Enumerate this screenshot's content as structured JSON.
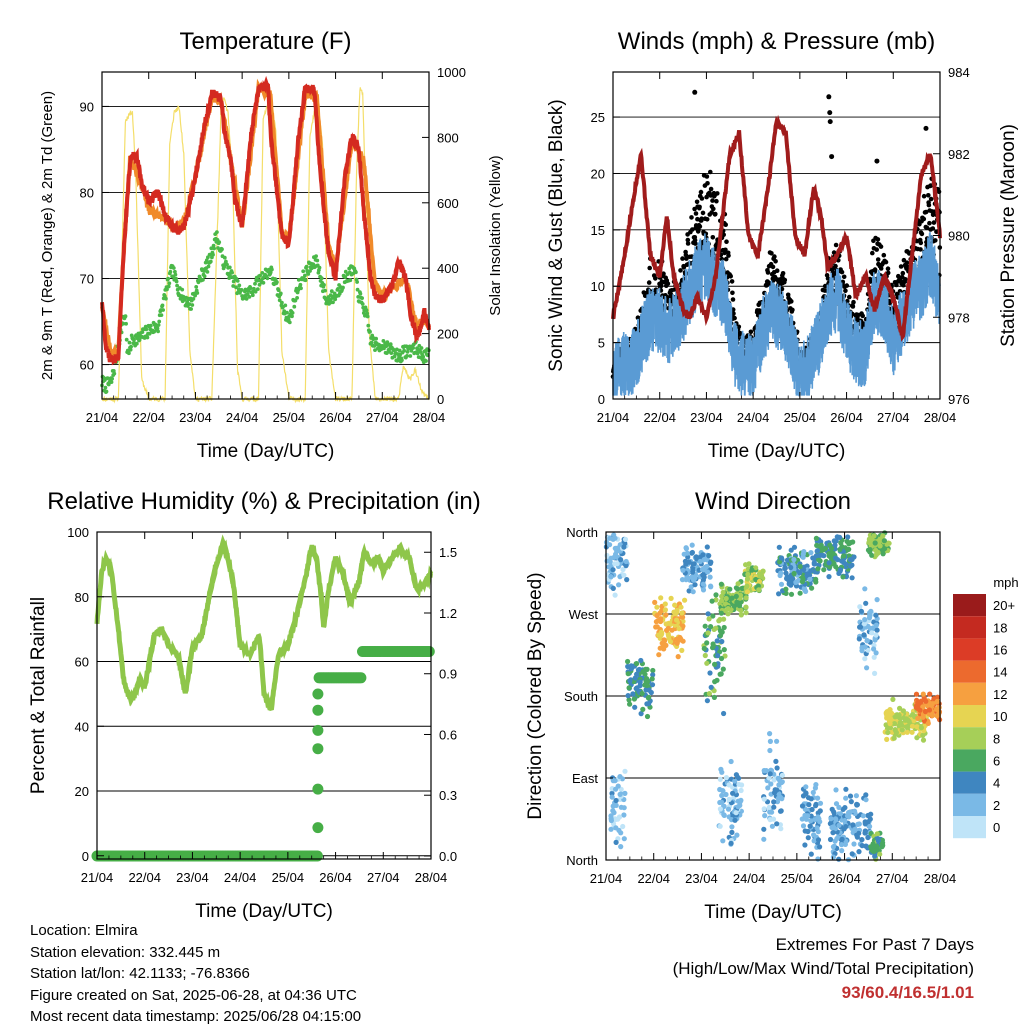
{
  "colors": {
    "t2m": "#d42a20",
    "t9m": "#f08a2a",
    "td": "#4ab848",
    "solar": "#f4de6a",
    "gust": "#000000",
    "wind": "#5a9bd4",
    "pressure": "#a01c1c",
    "rh": "#8ec64a",
    "precip": "#46ae46",
    "extremes": "#c03030"
  },
  "info": {
    "location": "Location: Elmira",
    "elevation": "Station elevation: 332.445 m",
    "latlon": "Station lat/lon: 42.1133; -76.8366",
    "created": "Figure created on Sat, 2025-06-28, at 04:36 UTC",
    "recent": "Most recent data timestamp: 2025/06/28 04:15:00"
  },
  "extremes": {
    "title": "Extremes For Past 7 Days",
    "subtitle": "(High/Low/Max Wind/Total Precipitation)",
    "values": "93/60.4/16.5/1.01"
  },
  "chart_data": [
    {
      "type": "line",
      "title": "Temperature (F)",
      "xlabel": "Time (Day/UTC)",
      "ylabel": "2m & 9m T (Red, Orange) & 2m Td (Green)",
      "y2label": "Solar Insolation (Yellow)",
      "x_ticks": [
        "21/04",
        "22/04",
        "23/04",
        "24/04",
        "25/04",
        "26/04",
        "27/04",
        "28/04"
      ],
      "xlim": [
        0,
        7
      ],
      "ylim": [
        56,
        94
      ],
      "y_ticks": [
        60,
        70,
        80,
        90
      ],
      "y2lim": [
        0,
        1000
      ],
      "y2_ticks": [
        0,
        200,
        400,
        600,
        800,
        1000
      ],
      "grid": true,
      "series": [
        {
          "name": "2m T",
          "key": "t2m",
          "x": [
            0,
            0.08,
            0.18,
            0.35,
            0.45,
            0.55,
            0.62,
            0.75,
            0.85,
            1.0,
            1.2,
            1.35,
            1.5,
            1.62,
            1.75,
            1.85,
            2.0,
            2.2,
            2.35,
            2.55,
            2.62,
            2.75,
            2.85,
            3.0,
            3.2,
            3.35,
            3.55,
            3.62,
            3.75,
            3.85,
            4.0,
            4.2,
            4.35,
            4.55,
            4.62,
            4.75,
            4.85,
            5.0,
            5.2,
            5.35,
            5.5,
            5.6,
            5.75,
            5.85,
            6.0,
            6.2,
            6.35,
            6.5,
            6.6,
            6.75,
            6.9,
            7.0
          ],
          "values": [
            67.5,
            62,
            60.5,
            61,
            72,
            80,
            84.5,
            84,
            81,
            79,
            80,
            77.5,
            76,
            75.5,
            76,
            78,
            82,
            88,
            91.5,
            91,
            87,
            84,
            79,
            76,
            87,
            92,
            92.5,
            86,
            80,
            75,
            74,
            86,
            92,
            92,
            86,
            78,
            73,
            70,
            82,
            86.5,
            85,
            78,
            70,
            68,
            67.5,
            69,
            72,
            70,
            66,
            63,
            66,
            64
          ]
        },
        {
          "name": "9m T",
          "key": "t9m",
          "x": [
            0,
            0.18,
            0.35,
            0.45,
            0.6,
            0.85,
            1.0,
            1.35,
            1.5,
            1.75,
            2.0,
            2.35,
            2.55,
            2.75,
            3.0,
            3.35,
            3.6,
            3.85,
            4.0,
            4.35,
            4.6,
            4.85,
            5.0,
            5.35,
            5.6,
            5.85,
            6.0,
            6.5,
            6.75,
            6.9,
            7.0
          ],
          "values": [
            67,
            61.5,
            61.5,
            72,
            84,
            81,
            78,
            77,
            76,
            76.5,
            82,
            91,
            90.5,
            84,
            76,
            92,
            91.5,
            75.5,
            74.5,
            91.5,
            91,
            74,
            71,
            86,
            84,
            69,
            68,
            70,
            64,
            65.5,
            64.5
          ]
        },
        {
          "name": "2m Td",
          "key": "td",
          "x": [
            0,
            0.08,
            0.2,
            0.3,
            0.4,
            0.5,
            0.55,
            0.65,
            0.8,
            1.0,
            1.2,
            1.35,
            1.5,
            1.7,
            1.9,
            2.1,
            2.3,
            2.45,
            2.6,
            2.8,
            3.0,
            3.2,
            3.4,
            3.6,
            3.8,
            4.0,
            4.2,
            4.4,
            4.6,
            4.8,
            5.0,
            5.2,
            5.4,
            5.5,
            5.65,
            5.75,
            5.9,
            6.0,
            6.2,
            6.35,
            6.5,
            6.7,
            6.9,
            7.0
          ],
          "values": [
            58,
            57.5,
            58,
            60.5,
            64,
            66,
            61,
            63,
            63,
            64,
            64.5,
            68,
            71,
            68,
            67,
            70,
            72,
            75,
            72,
            70,
            68,
            68.5,
            70,
            71,
            68,
            65,
            69,
            71,
            72,
            67.5,
            68,
            70,
            71,
            68,
            66,
            63,
            62,
            62.5,
            61.5,
            61,
            61.5,
            62,
            61,
            61
          ]
        },
        {
          "name": "Solar Insolation",
          "key": "solar",
          "axis": "y2",
          "x": [
            0,
            0.35,
            0.5,
            0.58,
            0.65,
            0.72,
            0.85,
            1.0,
            1.35,
            1.45,
            1.55,
            1.65,
            1.75,
            1.88,
            2.0,
            2.35,
            2.5,
            2.55,
            2.62,
            2.7,
            2.8,
            2.9,
            3.0,
            3.35,
            3.45,
            3.55,
            3.62,
            3.72,
            3.85,
            4.0,
            4.35,
            4.45,
            4.55,
            4.62,
            4.72,
            4.85,
            5.0,
            5.35,
            5.45,
            5.52,
            5.58,
            5.65,
            5.72,
            5.85,
            6.0,
            6.35,
            6.45,
            6.52,
            6.6,
            6.7,
            6.85,
            7.0
          ],
          "values": [
            0,
            0,
            850,
            870,
            880,
            700,
            60,
            0,
            0,
            780,
            880,
            890,
            750,
            150,
            0,
            0,
            650,
            900,
            920,
            870,
            650,
            90,
            0,
            0,
            860,
            900,
            920,
            820,
            150,
            0,
            0,
            800,
            880,
            910,
            780,
            150,
            0,
            0,
            700,
            950,
            930,
            600,
            200,
            0,
            0,
            0,
            100,
            80,
            60,
            90,
            20,
            0
          ]
        }
      ]
    },
    {
      "type": "scatter",
      "title": "Winds (mph) & Pressure (mb)",
      "xlabel": "Time (Day/UTC)",
      "ylabel": "Sonic Wind & Gust (Blue, Black)",
      "y2label": "Station Pressure (Maroon)",
      "x_ticks": [
        "21/04",
        "22/04",
        "23/04",
        "24/04",
        "25/04",
        "26/04",
        "27/04",
        "28/04"
      ],
      "xlim": [
        0,
        7
      ],
      "ylim": [
        0,
        29
      ],
      "y_ticks": [
        0,
        5,
        10,
        15,
        20,
        25
      ],
      "y2lim": [
        976,
        984
      ],
      "y2_ticks": [
        976,
        978,
        980,
        982,
        984
      ],
      "grid": true,
      "gust_envelope": {
        "x": [
          0,
          0.2,
          0.4,
          0.6,
          0.8,
          1.0,
          1.2,
          1.4,
          1.6,
          1.8,
          2.0,
          2.2,
          2.4,
          2.6,
          2.8,
          3.0,
          3.2,
          3.4,
          3.6,
          3.8,
          4.0,
          4.2,
          4.4,
          4.6,
          4.8,
          5.0,
          5.2,
          5.4,
          5.6,
          5.8,
          6.0,
          6.2,
          6.4,
          6.6,
          6.8,
          7.0
        ],
        "values": [
          3,
          4.5,
          5,
          8,
          12,
          13,
          10,
          11,
          15,
          18,
          20,
          19,
          17,
          8,
          5,
          6,
          10,
          13,
          12,
          9,
          4,
          5,
          7,
          12,
          14,
          10,
          8,
          7,
          15,
          13,
          10,
          12,
          14,
          17,
          20,
          18
        ]
      },
      "gust_extremes": [
        {
          "x": 1.75,
          "y": 27.2
        },
        {
          "x": 4.62,
          "y": 26.8
        },
        {
          "x": 4.64,
          "y": 25.4
        },
        {
          "x": 4.65,
          "y": 24.6
        },
        {
          "x": 4.68,
          "y": 21.5
        },
        {
          "x": 5.65,
          "y": 21.1
        },
        {
          "x": 6.7,
          "y": 24.0
        }
      ],
      "series": [
        {
          "name": "Sonic Wind",
          "key": "wind",
          "x": [
            0,
            0.2,
            0.4,
            0.6,
            0.8,
            1.0,
            1.2,
            1.4,
            1.6,
            1.8,
            2.0,
            2.2,
            2.4,
            2.6,
            2.8,
            3.0,
            3.2,
            3.4,
            3.6,
            3.8,
            4.0,
            4.2,
            4.4,
            4.6,
            4.8,
            5.0,
            5.2,
            5.4,
            5.6,
            5.8,
            6.0,
            6.2,
            6.4,
            6.6,
            6.8,
            7.0
          ],
          "values": [
            2,
            3,
            3,
            5,
            7,
            7,
            6,
            7,
            9,
            11,
            12,
            10,
            9,
            4,
            3,
            3,
            6,
            8,
            7,
            5,
            2,
            3,
            5,
            8,
            9,
            6,
            4,
            4,
            9,
            8,
            5,
            7,
            9,
            10,
            12,
            9
          ]
        },
        {
          "name": "Station Pressure",
          "key": "pressure",
          "axis": "y2",
          "x": [
            0,
            0.25,
            0.45,
            0.6,
            0.8,
            1.0,
            1.15,
            1.3,
            1.5,
            1.65,
            1.8,
            2.0,
            2.2,
            2.5,
            2.7,
            2.9,
            3.1,
            3.3,
            3.5,
            3.7,
            3.9,
            4.1,
            4.3,
            4.45,
            4.6,
            4.8,
            5.0,
            5.2,
            5.4,
            5.6,
            5.8,
            6.0,
            6.2,
            6.4,
            6.6,
            6.8,
            6.95,
            7.0
          ],
          "values": [
            978,
            979.5,
            981,
            982,
            979.5,
            979,
            980.5,
            979,
            978.2,
            978,
            978.5,
            978,
            979,
            982,
            982.5,
            980,
            979.5,
            981,
            982.8,
            982.5,
            980,
            979.5,
            981.2,
            980.5,
            979.2,
            979.5,
            980,
            978.5,
            979,
            978.2,
            979,
            978.5,
            977.5,
            979.5,
            981.5,
            982,
            980.5,
            980
          ]
        }
      ]
    },
    {
      "type": "line",
      "title": "Relative Humidity (%) & Precipitation (in)",
      "xlabel": "Time (Day/UTC)",
      "ylabel": "Percent & Total Rainfall",
      "x_ticks": [
        "21/04",
        "22/04",
        "23/04",
        "24/04",
        "25/04",
        "26/04",
        "27/04",
        "28/04"
      ],
      "xlim": [
        0,
        7
      ],
      "ylim": [
        -1,
        100
      ],
      "y_ticks": [
        0,
        20,
        40,
        60,
        80,
        100
      ],
      "y2lim": [
        -0.015,
        1.6
      ],
      "y2_ticks": [
        "0.0",
        "0.3",
        "0.6",
        "0.9",
        "1.2",
        "1.5"
      ],
      "grid": true,
      "series": [
        {
          "name": "Relative Humidity",
          "key": "rh",
          "x": [
            0,
            0.1,
            0.2,
            0.3,
            0.45,
            0.55,
            0.65,
            0.75,
            0.9,
            1.0,
            1.2,
            1.35,
            1.5,
            1.7,
            1.85,
            2.0,
            2.2,
            2.35,
            2.5,
            2.65,
            2.85,
            3.0,
            3.2,
            3.4,
            3.5,
            3.65,
            3.8,
            4.0,
            4.2,
            4.4,
            4.5,
            4.6,
            4.7,
            4.75,
            4.85,
            5.0,
            5.15,
            5.3,
            5.5,
            5.6,
            5.75,
            5.9,
            6.0,
            6.2,
            6.35,
            6.55,
            6.7,
            6.9,
            7.0
          ],
          "values": [
            72,
            88,
            92,
            88,
            70,
            55,
            50,
            48,
            55,
            52,
            68,
            70,
            65,
            62,
            50,
            64,
            68,
            80,
            90,
            97,
            85,
            65,
            62,
            68,
            50,
            45,
            62,
            65,
            75,
            88,
            96,
            92,
            80,
            70,
            82,
            92,
            88,
            78,
            85,
            94,
            90,
            92,
            88,
            92,
            95,
            92,
            82,
            85,
            87
          ]
        },
        {
          "name": "Total Rainfall",
          "key": "precip",
          "axis": "y2",
          "x": [
            0,
            4.63,
            4.63,
            4.63,
            4.66,
            4.68,
            5.0,
            5.25,
            5.5,
            5.55,
            6.0,
            6.5,
            7.0
          ],
          "values": [
            0,
            0,
            0.14,
            0.53,
            0.88,
            0.88,
            0.88,
            0.88,
            0.88,
            1.01,
            1.01,
            1.01,
            1.01
          ]
        }
      ]
    },
    {
      "type": "scatter",
      "title": "Wind Direction",
      "xlabel": "Time (Day/UTC)",
      "ylabel": "Direction (Colored By Speed)",
      "x_ticks": [
        "21/04",
        "22/04",
        "23/04",
        "24/04",
        "25/04",
        "26/04",
        "27/04",
        "28/04"
      ],
      "xlim": [
        0,
        7
      ],
      "ylim": [
        0,
        360
      ],
      "y_ticks": [
        "North",
        "East",
        "South",
        "West",
        "North"
      ],
      "grid": true,
      "colorbar": {
        "title": "mph",
        "labels": [
          "20+",
          "18",
          "16",
          "14",
          "12",
          "10",
          "8",
          "6",
          "4",
          "2",
          "0"
        ],
        "colors": [
          "#9a1b1b",
          "#c42a20",
          "#dc3c26",
          "#ec6a2e",
          "#f6a040",
          "#e6d452",
          "#a6cf58",
          "#4aa860",
          "#3f86c0",
          "#7ab9e6",
          "#bfe4f8"
        ]
      },
      "clusters": [
        {
          "x0": 0.0,
          "x1": 0.45,
          "y": 330,
          "spread": 35,
          "speed": 2
        },
        {
          "x0": 0.1,
          "x1": 0.4,
          "y": 50,
          "spread": 50,
          "speed": 2
        },
        {
          "x0": 0.45,
          "x1": 1.0,
          "y": 195,
          "spread": 35,
          "speed": 5
        },
        {
          "x0": 1.0,
          "x1": 1.65,
          "y": 255,
          "spread": 30,
          "speed": 11
        },
        {
          "x0": 1.6,
          "x1": 2.2,
          "y": 320,
          "spread": 25,
          "speed": 3
        },
        {
          "x0": 2.05,
          "x1": 2.5,
          "y": 235,
          "spread": 65,
          "speed": 6
        },
        {
          "x0": 2.4,
          "x1": 2.95,
          "y": 285,
          "spread": 20,
          "speed": 7
        },
        {
          "x0": 2.9,
          "x1": 3.3,
          "y": 310,
          "spread": 20,
          "speed": 8
        },
        {
          "x0": 3.3,
          "x1": 3.7,
          "y": 75,
          "spread": 55,
          "speed": 2
        },
        {
          "x0": 2.35,
          "x1": 2.85,
          "y": 60,
          "spread": 55,
          "speed": 2
        },
        {
          "x0": 3.6,
          "x1": 4.4,
          "y": 315,
          "spread": 30,
          "speed": 4
        },
        {
          "x0": 4.1,
          "x1": 4.5,
          "y": 45,
          "spread": 45,
          "speed": 3
        },
        {
          "x0": 4.4,
          "x1": 5.2,
          "y": 335,
          "spread": 25,
          "speed": 5
        },
        {
          "x0": 4.7,
          "x1": 5.55,
          "y": 35,
          "spread": 40,
          "speed": 3
        },
        {
          "x0": 5.3,
          "x1": 5.7,
          "y": 250,
          "spread": 45,
          "speed": 2
        },
        {
          "x0": 5.5,
          "x1": 5.95,
          "y": 345,
          "spread": 15,
          "speed": 7
        },
        {
          "x0": 5.55,
          "x1": 5.8,
          "y": 15,
          "spread": 15,
          "speed": 6
        },
        {
          "x0": 5.85,
          "x1": 6.75,
          "y": 152,
          "spread": 20,
          "speed": 9
        },
        {
          "x0": 6.5,
          "x1": 7.0,
          "y": 165,
          "spread": 15,
          "speed": 13
        }
      ]
    }
  ]
}
